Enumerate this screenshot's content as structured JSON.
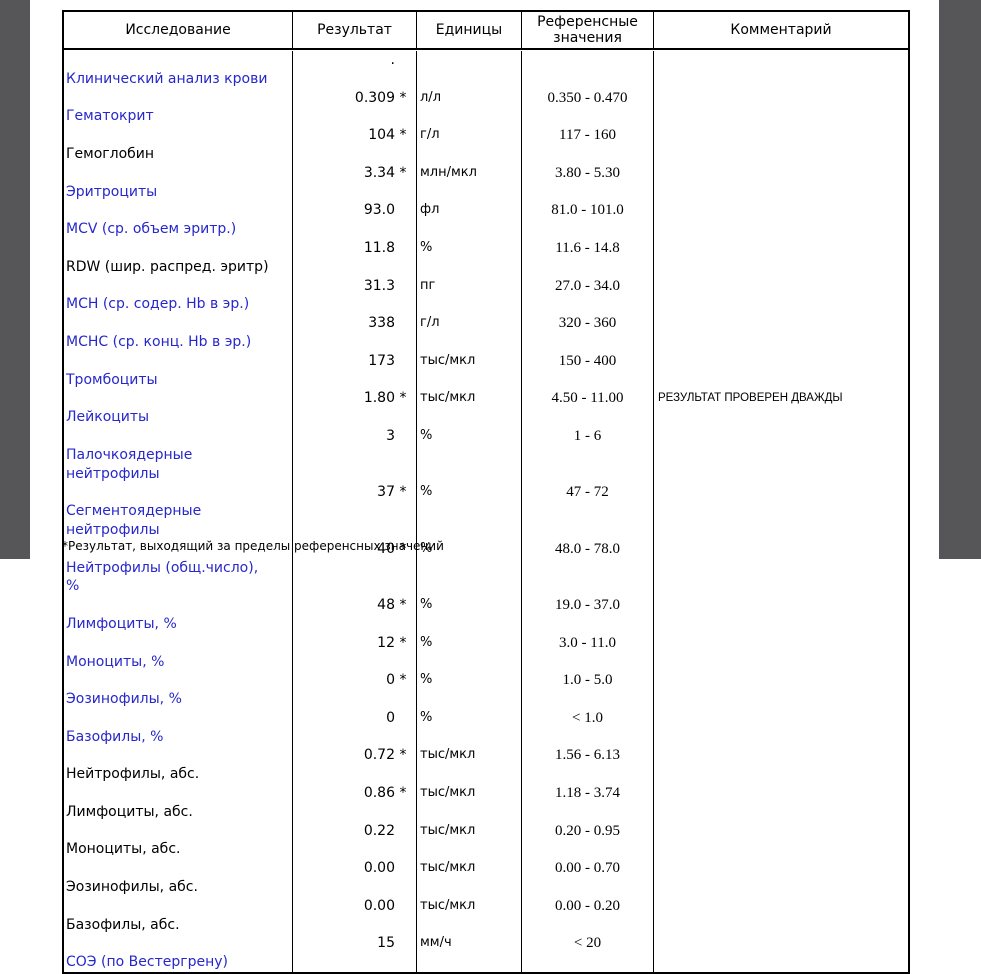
{
  "colors": {
    "test_name_blue": "#2727cb",
    "margin_stripe_gray": "#565658",
    "text_black": "#000000"
  },
  "table": {
    "headers": {
      "test": "Исследование",
      "result": "Результат",
      "units": "Единицы",
      "reference": "Референсные значения",
      "comment": "Комментарий"
    },
    "rows": [
      {
        "test": "Клинический анализ крови",
        "blue": true,
        "result": ".",
        "flag": "",
        "units": "",
        "reference": "",
        "comment": ""
      },
      {
        "test": "Гематокрит",
        "blue": true,
        "result": "0.309",
        "flag": "*",
        "units": "л/л",
        "reference": "0.350 - 0.470",
        "comment": ""
      },
      {
        "test": "Гемоглобин",
        "blue": false,
        "result": "104",
        "flag": "*",
        "units": "г/л",
        "reference": "117 - 160",
        "comment": ""
      },
      {
        "test": "Эритроциты",
        "blue": true,
        "result": "3.34",
        "flag": "*",
        "units": "млн/мкл",
        "reference": "3.80 - 5.30",
        "comment": ""
      },
      {
        "test": "MCV (ср. объем эритр.)",
        "blue": true,
        "result": "93.0",
        "flag": "",
        "units": "фл",
        "reference": "81.0 - 101.0",
        "comment": ""
      },
      {
        "test": "RDW (шир. распред. эритр)",
        "blue": false,
        "result": "11.8",
        "flag": "",
        "units": "%",
        "reference": "11.6 - 14.8",
        "comment": ""
      },
      {
        "test": "MCH (ср. содер. Hb в эр.)",
        "blue": true,
        "result": "31.3",
        "flag": "",
        "units": "пг",
        "reference": "27.0 - 34.0",
        "comment": ""
      },
      {
        "test": "MCHC (ср. конц. Hb в эр.)",
        "blue": true,
        "result": "338",
        "flag": "",
        "units": "г/л",
        "reference": "320 - 360",
        "comment": ""
      },
      {
        "test": "Тромбоциты",
        "blue": true,
        "result": "173",
        "flag": "",
        "units": "тыс/мкл",
        "reference": "150 - 400",
        "comment": ""
      },
      {
        "test": "Лейкоциты",
        "blue": true,
        "result": "1.80",
        "flag": "*",
        "units": "тыс/мкл",
        "reference": "4.50 - 11.00",
        "comment": "РЕЗУЛЬТАТ ПРОВЕРЕН ДВАЖДЫ"
      },
      {
        "test": "Палочкоядерные\nнейтрофилы",
        "blue": true,
        "result": "3",
        "flag": "",
        "units": "%",
        "reference": "1 - 6",
        "comment": ""
      },
      {
        "test": "Сегментоядерные\nнейтрофилы",
        "blue": true,
        "result": "37",
        "flag": "*",
        "units": "%",
        "reference": "47 - 72",
        "comment": ""
      },
      {
        "test": "Нейтрофилы (общ.число),\n%",
        "blue": true,
        "result": "40",
        "flag": "*",
        "units": "%",
        "reference": "48.0 - 78.0",
        "comment": ""
      },
      {
        "test": "Лимфоциты, %",
        "blue": true,
        "result": "48",
        "flag": "*",
        "units": "%",
        "reference": "19.0 - 37.0",
        "comment": ""
      },
      {
        "test": "Моноциты, %",
        "blue": true,
        "result": "12",
        "flag": "*",
        "units": "%",
        "reference": "3.0 - 11.0",
        "comment": ""
      },
      {
        "test": "Эозинофилы, %",
        "blue": true,
        "result": "0",
        "flag": "*",
        "units": "%",
        "reference": "1.0 - 5.0",
        "comment": ""
      },
      {
        "test": "Базофилы, %",
        "blue": true,
        "result": "0",
        "flag": "",
        "units": "%",
        "reference": "< 1.0",
        "comment": ""
      },
      {
        "test": "Нейтрофилы, абс.",
        "blue": false,
        "result": "0.72",
        "flag": "*",
        "units": "тыс/мкл",
        "reference": "1.56 - 6.13",
        "comment": ""
      },
      {
        "test": "Лимфоциты, абс.",
        "blue": false,
        "result": "0.86",
        "flag": "*",
        "units": "тыс/мкл",
        "reference": "1.18 - 3.74",
        "comment": ""
      },
      {
        "test": "Моноциты, абс.",
        "blue": false,
        "result": "0.22",
        "flag": "",
        "units": "тыс/мкл",
        "reference": "0.20 - 0.95",
        "comment": ""
      },
      {
        "test": "Эозинофилы, абс.",
        "blue": false,
        "result": "0.00",
        "flag": "",
        "units": "тыс/мкл",
        "reference": "0.00 - 0.70",
        "comment": ""
      },
      {
        "test": "Базофилы, абс.",
        "blue": false,
        "result": "0.00",
        "flag": "",
        "units": "тыс/мкл",
        "reference": "0.00 - 0.20",
        "comment": ""
      },
      {
        "test": "СОЭ (по Вестергрену)",
        "blue": true,
        "result": "15",
        "flag": "",
        "units": "мм/ч",
        "reference": "< 20",
        "comment": ""
      }
    ]
  },
  "page": {
    "footnote": "*Результат, выходящий за пределы референсных значений"
  }
}
